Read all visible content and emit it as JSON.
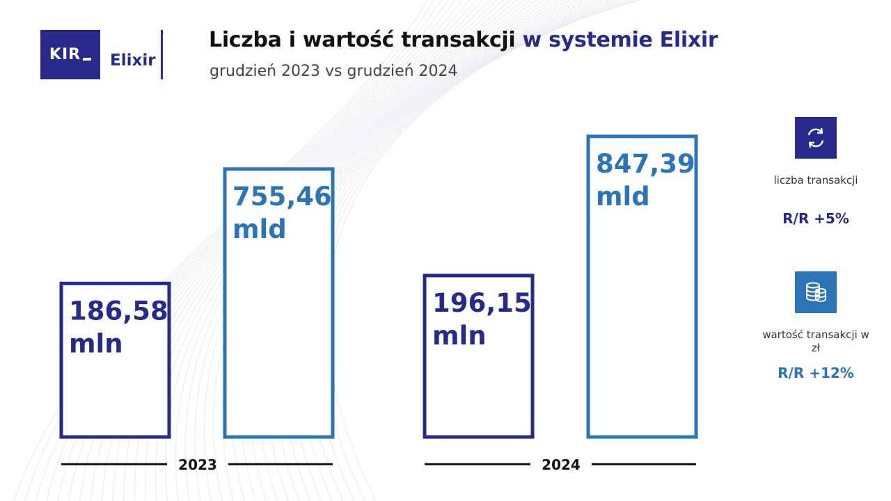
{
  "logo": {
    "kir": "KIR",
    "product": "Elixir"
  },
  "header": {
    "title_main": "Liczba i wartość transakcji",
    "title_accent": "w systemie Elixir",
    "subtitle": "grudzień 2023 vs grudzień 2024"
  },
  "colors": {
    "navy": "#272a8c",
    "blue": "#2b74b9",
    "axis": "#111111"
  },
  "chart_data": {
    "type": "bar",
    "categories": [
      "2023",
      "2024"
    ],
    "series": [
      {
        "values": [
          186.58,
          196.15
        ],
        "labels": [
          "186,58",
          "196,15"
        ],
        "unit": "mln",
        "color": "#272a8c"
      },
      {
        "values": [
          755.46,
          847.39
        ],
        "labels": [
          "755,46",
          "847,39"
        ],
        "unit": "mld",
        "color": "#2b74b9"
      }
    ]
  },
  "kpis": [
    {
      "icon": "exchange-arrows-icon",
      "label": "liczba transakcji",
      "change": "R/R +5%",
      "color": "#272a8c"
    },
    {
      "icon": "coin-stack-icon",
      "label": "wartość transakcji w zł",
      "change": "R/R +12%",
      "color": "#2b74b9"
    }
  ]
}
